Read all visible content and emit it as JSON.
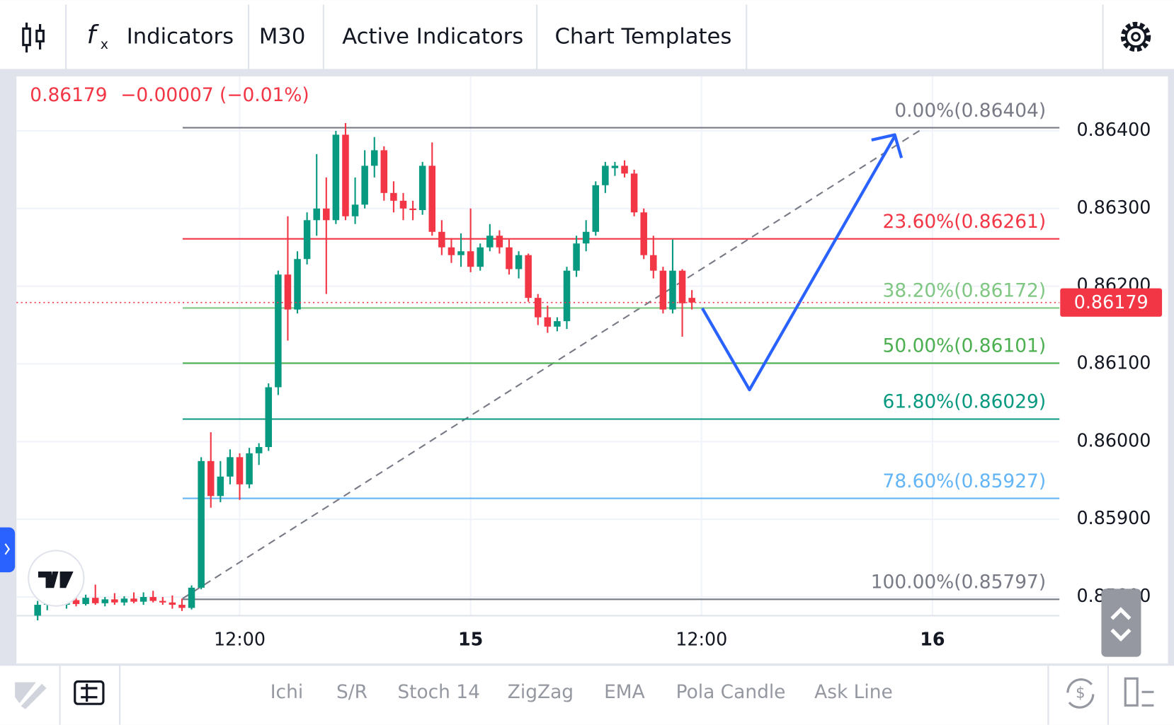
{
  "toolbar": {
    "indicators": "Indicators",
    "timeframe": "M30",
    "active_indicators": "Active Indicators",
    "chart_templates": "Chart Templates"
  },
  "bottom_bar": {
    "items": [
      "Ichi",
      "S/R",
      "Stoch 14",
      "ZigZag",
      "EMA",
      "Pola Candle",
      "Ask Line"
    ]
  },
  "chart_data": {
    "type": "candlestick",
    "last_price": {
      "value": 0.86179,
      "label": "0.86179"
    },
    "change": "−0.00007 (−0.01%)",
    "up_color": "#089981",
    "down_color": "#f23645",
    "x": [
      1.5,
      2,
      2.5,
      3,
      3.5,
      4,
      4.5,
      5,
      5.5,
      6,
      6.5,
      7,
      7.5,
      8,
      8.5,
      9,
      9.5,
      10,
      10.5,
      11,
      11.5,
      12,
      12.5,
      13,
      13.5,
      14,
      14.5,
      15,
      15.5,
      16,
      16.5,
      17,
      17.5,
      18,
      18.5,
      19,
      19.5,
      20,
      20.5,
      21,
      21.5,
      22,
      22.5,
      23,
      23.5,
      24,
      24.5,
      25,
      25.5,
      26,
      26.5,
      27,
      27.5,
      28,
      28.5,
      29,
      29.5,
      30,
      30.5,
      31,
      31.5,
      32,
      32.5,
      33,
      33.5,
      34,
      34.5,
      35,
      35.5
    ],
    "open": [
      0.85776,
      0.8579,
      0.85795,
      0.8579,
      0.85796,
      0.85791,
      0.85799,
      0.85792,
      0.85797,
      0.85793,
      0.85798,
      0.85794,
      0.858,
      0.85795,
      0.85793,
      0.8579,
      0.85786,
      0.85812,
      0.85975,
      0.8593,
      0.85955,
      0.8598,
      0.85945,
      0.85985,
      0.85993,
      0.8607,
      0.86215,
      0.8617,
      0.86235,
      0.86285,
      0.863,
      0.86285,
      0.86395,
      0.8629,
      0.86305,
      0.86355,
      0.86375,
      0.8632,
      0.8631,
      0.863,
      0.86298,
      0.86355,
      0.8627,
      0.8625,
      0.8624,
      0.86245,
      0.86225,
      0.8625,
      0.86265,
      0.8625,
      0.86222,
      0.8624,
      0.86185,
      0.8616,
      0.86148,
      0.86155,
      0.8622,
      0.86255,
      0.8627,
      0.8633,
      0.86352,
      0.86355,
      0.86345,
      0.86295,
      0.8624,
      0.8622,
      0.8617,
      0.8622,
      0.86185
    ],
    "high": [
      0.85795,
      0.858,
      0.85802,
      0.85798,
      0.858,
      0.85803,
      0.85816,
      0.858,
      0.85805,
      0.85801,
      0.85806,
      0.85806,
      0.85808,
      0.858,
      0.85802,
      0.85798,
      0.85815,
      0.8598,
      0.86012,
      0.85975,
      0.8599,
      0.85985,
      0.85992,
      0.85998,
      0.86075,
      0.8622,
      0.8629,
      0.86245,
      0.86295,
      0.8637,
      0.8634,
      0.864,
      0.8641,
      0.8634,
      0.86375,
      0.86392,
      0.8638,
      0.86335,
      0.8632,
      0.8631,
      0.8636,
      0.86385,
      0.86285,
      0.86262,
      0.86268,
      0.863,
      0.86255,
      0.8628,
      0.86272,
      0.8626,
      0.86245,
      0.86242,
      0.8619,
      0.86175,
      0.8616,
      0.86225,
      0.86265,
      0.86285,
      0.86335,
      0.8636,
      0.8636,
      0.86362,
      0.8635,
      0.863,
      0.86265,
      0.86225,
      0.8626,
      0.86222,
      0.86195
    ],
    "low": [
      0.8577,
      0.85783,
      0.85788,
      0.85785,
      0.85788,
      0.85789,
      0.8579,
      0.85788,
      0.8579,
      0.85789,
      0.85792,
      0.8579,
      0.85793,
      0.8579,
      0.85785,
      0.85782,
      0.85784,
      0.8581,
      0.85915,
      0.85922,
      0.85945,
      0.85925,
      0.8594,
      0.8597,
      0.85988,
      0.8606,
      0.8613,
      0.86165,
      0.86228,
      0.86265,
      0.8619,
      0.8628,
      0.86285,
      0.8628,
      0.863,
      0.8634,
      0.8631,
      0.86295,
      0.86285,
      0.86285,
      0.86292,
      0.86265,
      0.8624,
      0.8623,
      0.86225,
      0.86218,
      0.8622,
      0.86245,
      0.86242,
      0.86215,
      0.8621,
      0.8618,
      0.8615,
      0.8614,
      0.86142,
      0.86145,
      0.86212,
      0.86245,
      0.86265,
      0.8632,
      0.86342,
      0.8634,
      0.8629,
      0.86235,
      0.8621,
      0.86165,
      0.86165,
      0.86135,
      0.8617
    ],
    "close": [
      0.8579,
      0.85795,
      0.8579,
      0.85796,
      0.85791,
      0.85799,
      0.85792,
      0.85797,
      0.85793,
      0.85798,
      0.85794,
      0.858,
      0.85795,
      0.85793,
      0.8579,
      0.85786,
      0.85812,
      0.85975,
      0.8593,
      0.85955,
      0.8598,
      0.85945,
      0.85985,
      0.85993,
      0.8607,
      0.86215,
      0.8617,
      0.86235,
      0.86285,
      0.863,
      0.86285,
      0.86395,
      0.8629,
      0.86305,
      0.86355,
      0.86375,
      0.8632,
      0.8631,
      0.863,
      0.86298,
      0.86355,
      0.8627,
      0.8625,
      0.8624,
      0.86245,
      0.86225,
      0.8625,
      0.86265,
      0.8625,
      0.86222,
      0.8624,
      0.86185,
      0.8616,
      0.86148,
      0.86155,
      0.8622,
      0.86255,
      0.8627,
      0.8633,
      0.86355,
      0.86355,
      0.86345,
      0.86295,
      0.8624,
      0.8622,
      0.8617,
      0.8622,
      0.86178,
      0.86179
    ],
    "fib": [
      {
        "label": "0.00%(0.86404)",
        "value": 0.86404,
        "color": "#787b86"
      },
      {
        "label": "23.60%(0.86261)",
        "value": 0.86261,
        "color": "#f23645"
      },
      {
        "label": "38.20%(0.86172)",
        "value": 0.86172,
        "color": "#81c784"
      },
      {
        "label": "50.00%(0.86101)",
        "value": 0.86101,
        "color": "#4caf50"
      },
      {
        "label": "61.80%(0.86029)",
        "value": 0.86029,
        "color": "#089981"
      },
      {
        "label": "78.60%(0.85927)",
        "value": 0.85927,
        "color": "#64b5f6"
      },
      {
        "label": "100.00%(0.85797)",
        "value": 0.85797,
        "color": "#787b86"
      }
    ],
    "xlim": [
      0.4,
      54.6
    ],
    "xticks": [
      {
        "value": 12,
        "label": "12:00"
      },
      {
        "value": 24,
        "label": "15"
      },
      {
        "value": 36,
        "label": "12:00"
      },
      {
        "value": 48,
        "label": "16"
      }
    ],
    "ylim": [
      0.85776,
      0.8647
    ],
    "yticks": [
      {
        "value": 0.858,
        "label": "0.85800"
      },
      {
        "value": 0.859,
        "label": "0.85900"
      },
      {
        "value": 0.86,
        "label": "0.86000"
      },
      {
        "value": 0.861,
        "label": "0.86100"
      },
      {
        "value": 0.862,
        "label": "0.86200"
      },
      {
        "value": 0.863,
        "label": "0.86300"
      },
      {
        "value": 0.864,
        "label": "0.86400"
      }
    ],
    "grid": true
  }
}
